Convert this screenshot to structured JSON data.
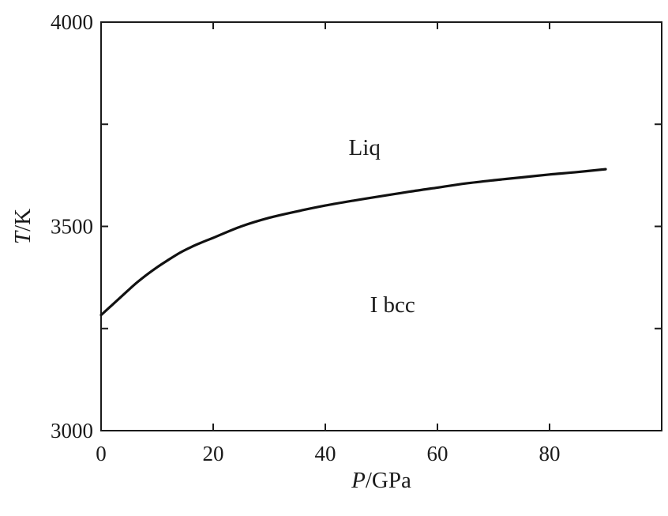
{
  "chart_data": {
    "type": "line",
    "title": "",
    "xlabel": {
      "italic": "P",
      "rest": "/GPa"
    },
    "ylabel": {
      "italic": "T",
      "rest": "/K"
    },
    "xlim": [
      0,
      100
    ],
    "ylim": [
      3000,
      4000
    ],
    "x_ticks": [
      0,
      20,
      40,
      60,
      80
    ],
    "x_tick_labels": [
      "0",
      "20",
      "40",
      "60",
      "80"
    ],
    "y_ticks": [
      3000,
      3250,
      3500,
      3750,
      4000
    ],
    "y_tick_labels": [
      "3000",
      "",
      "3500",
      "",
      "4000"
    ],
    "grid": false,
    "series": [
      {
        "x": [
          0,
          2,
          4,
          6,
          8,
          10,
          12,
          14,
          16,
          18,
          20,
          25,
          30,
          35,
          40,
          45,
          50,
          55,
          60,
          65,
          70,
          75,
          80,
          85,
          90
        ],
        "y": [
          3283,
          3308,
          3333,
          3358,
          3380,
          3400,
          3418,
          3435,
          3449,
          3461,
          3472,
          3500,
          3521,
          3537,
          3551,
          3563,
          3574,
          3585,
          3595,
          3605,
          3613,
          3620,
          3627,
          3633,
          3640
        ]
      }
    ],
    "annotations": [
      {
        "text": "Liq",
        "x": 47,
        "y": 3675
      },
      {
        "text": "I bcc",
        "x": 52,
        "y": 3290
      }
    ],
    "colors": {
      "line": "#111111",
      "axes": "#1a1a1a"
    }
  }
}
